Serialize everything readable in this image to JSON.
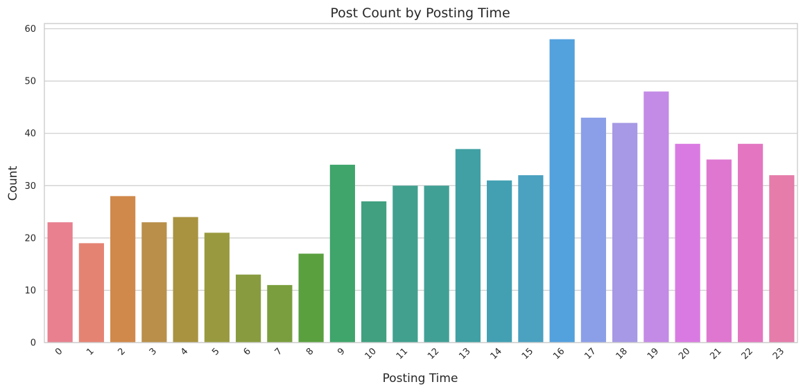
{
  "chart_data": {
    "type": "bar",
    "title": "Post Count by Posting Time",
    "xlabel": "Posting Time",
    "ylabel": "Count",
    "categories": [
      "0",
      "1",
      "2",
      "3",
      "4",
      "5",
      "6",
      "7",
      "8",
      "9",
      "10",
      "11",
      "12",
      "13",
      "14",
      "15",
      "16",
      "17",
      "18",
      "19",
      "20",
      "21",
      "22",
      "23"
    ],
    "values": [
      23,
      19,
      28,
      23,
      24,
      21,
      13,
      11,
      17,
      34,
      27,
      30,
      30,
      37,
      31,
      32,
      58,
      43,
      42,
      48,
      38,
      35,
      38,
      32
    ],
    "colors": [
      "#e8808f",
      "#e58373",
      "#d0894a",
      "#b98f4a",
      "#a99340",
      "#999a3f",
      "#889c3f",
      "#7a9e3d",
      "#5aa03e",
      "#3fa56b",
      "#40a080",
      "#41a08e",
      "#41a095",
      "#40a0a3",
      "#42a0b2",
      "#4aa1c0",
      "#53a1dd",
      "#8b9fe8",
      "#a799e5",
      "#c38ae6",
      "#d97ae2",
      "#df77d0",
      "#e476c1",
      "#e57caa"
    ],
    "ylim": [
      0,
      61
    ],
    "yticks": [
      0,
      10,
      20,
      30,
      40,
      50,
      60
    ],
    "grid": true,
    "legend": "none"
  }
}
